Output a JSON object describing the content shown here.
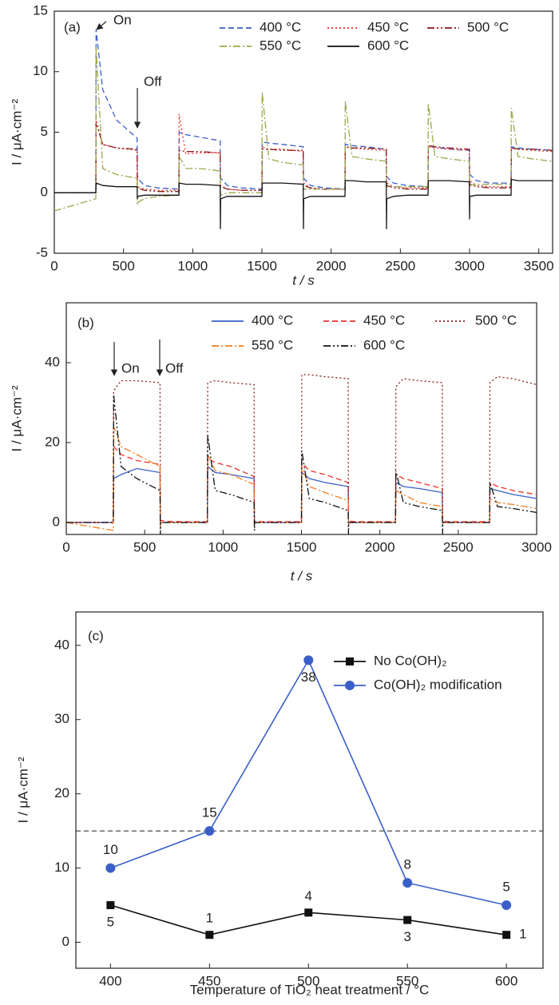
{
  "chart_data": [
    {
      "type": "line",
      "panel_label": "(a)",
      "annotations": [
        "On",
        "Off"
      ],
      "xlabel": "t / s",
      "ylabel": "I / μA·cm⁻²",
      "xlim": [
        0,
        3600
      ],
      "xticks": [
        0,
        500,
        1000,
        1500,
        2000,
        2500,
        3000,
        3500
      ],
      "ylim": [
        -5,
        15
      ],
      "yticks": [
        -5,
        0,
        5,
        10,
        15
      ],
      "x": [
        0,
        300,
        302,
        350,
        450,
        598,
        600,
        602,
        650,
        750,
        900,
        902,
        950,
        1050,
        1198,
        1200,
        1202,
        1250,
        1350,
        1500,
        1502,
        1550,
        1650,
        1798,
        1800,
        1802,
        1850,
        1950,
        2100,
        2102,
        2150,
        2250,
        2398,
        2400,
        2402,
        2450,
        2550,
        2700,
        2702,
        2750,
        2850,
        2998,
        3000,
        3002,
        3050,
        3150,
        3300,
        3302,
        3350,
        3450,
        3600
      ],
      "series": [
        {
          "name": "400 °C",
          "color": "#3a5fc8",
          "style": "dashed",
          "values": [
            0,
            0,
            13.5,
            8.5,
            6,
            4.5,
            1.5,
            1.2,
            0.6,
            0.4,
            0.3,
            5,
            4.8,
            4.6,
            4.3,
            1.5,
            1.2,
            0.6,
            0.4,
            0.3,
            4.2,
            4.1,
            4,
            3.8,
            1.5,
            1.2,
            0.6,
            0.4,
            0.3,
            4,
            3.9,
            3.8,
            3.6,
            1.6,
            1.3,
            0.8,
            0.6,
            0.5,
            3.8,
            3.8,
            3.6,
            3.5,
            1.8,
            1.5,
            1,
            0.8,
            0.8,
            3.8,
            3.7,
            3.6,
            3.5
          ]
        },
        {
          "name": "450 °C",
          "color": "#e8322b",
          "style": "dotted",
          "values": [
            0,
            0,
            6,
            4,
            3.7,
            3.5,
            0.5,
            0.5,
            0.3,
            0.2,
            0.2,
            6.5,
            3.2,
            3.3,
            3.3,
            0.8,
            0.6,
            0.3,
            0.2,
            0.2,
            3.8,
            3.6,
            3.6,
            3.4,
            1,
            0.8,
            0.4,
            0.3,
            0.3,
            3.8,
            3.7,
            3.6,
            3.5,
            1,
            0.8,
            0.5,
            0.4,
            0.4,
            3.8,
            3.7,
            3.6,
            3.5,
            1.2,
            1,
            0.6,
            0.5,
            0.5,
            3.7,
            3.6,
            3.5,
            3.4
          ]
        },
        {
          "name": "500 °C",
          "color": "#8b1a1a",
          "style": "dashdotdot",
          "values": [
            0,
            0,
            5.8,
            4,
            3.7,
            3.6,
            0.5,
            0.4,
            0.2,
            0.1,
            0.1,
            3.5,
            3.4,
            3.4,
            3.3,
            0.6,
            0.5,
            0.3,
            0.2,
            0.2,
            3.6,
            3.6,
            3.5,
            3.5,
            0.7,
            0.6,
            0.4,
            0.3,
            0.3,
            3.8,
            3.7,
            3.7,
            3.6,
            0.8,
            0.6,
            0.4,
            0.3,
            0.3,
            3.9,
            3.8,
            3.7,
            3.6,
            0.9,
            0.7,
            0.5,
            0.4,
            0.4,
            3.7,
            3.6,
            3.6,
            3.5
          ]
        },
        {
          "name": "550 °C",
          "color": "#9aa84a",
          "style": "dashdot",
          "values": [
            -1.5,
            -0.5,
            12,
            2,
            1.5,
            1.2,
            -1,
            -0.8,
            -0.5,
            -0.3,
            -0.2,
            3,
            2,
            2,
            1.8,
            -0.2,
            -0.2,
            0,
            0,
            0,
            8.3,
            2.8,
            2.5,
            2.3,
            0.2,
            0.3,
            0.3,
            0.3,
            0.3,
            7.6,
            3,
            2.8,
            2.6,
            0.5,
            0.5,
            0.5,
            0.5,
            0.5,
            7.4,
            3,
            2.8,
            2.6,
            0.5,
            0.6,
            0.7,
            0.7,
            0.7,
            7,
            3,
            2.8,
            2.6
          ]
        },
        {
          "name": "600 °C",
          "color": "#111111",
          "style": "solid",
          "values": [
            0,
            0,
            0.8,
            0.6,
            0.5,
            0.5,
            -0.5,
            -0.3,
            -0.2,
            -0.2,
            -0.2,
            0.8,
            0.7,
            0.7,
            0.6,
            -3,
            -0.5,
            -0.3,
            -0.3,
            -0.3,
            0.8,
            0.8,
            0.8,
            0.7,
            -3,
            -0.5,
            -0.3,
            -0.3,
            -0.3,
            1,
            1,
            0.9,
            0.9,
            -3,
            -0.5,
            -0.3,
            -0.2,
            -0.2,
            1,
            1,
            1,
            0.9,
            -2.2,
            -0.3,
            -0.2,
            -0.2,
            -0.2,
            1.1,
            1,
            1,
            1
          ]
        }
      ]
    },
    {
      "type": "line",
      "panel_label": "(b)",
      "annotations": [
        "On",
        "Off"
      ],
      "xlabel": "t / s",
      "ylabel": "I / μA·cm⁻²",
      "xlim": [
        0,
        3000
      ],
      "xticks": [
        0,
        500,
        1000,
        1500,
        2000,
        2500,
        3000
      ],
      "ylim": [
        -3,
        55
      ],
      "yticks": [
        0,
        20,
        40
      ],
      "x": [
        0,
        300,
        302,
        350,
        450,
        598,
        600,
        602,
        650,
        750,
        900,
        902,
        950,
        1050,
        1198,
        1200,
        1202,
        1250,
        1350,
        1500,
        1502,
        1550,
        1650,
        1798,
        1800,
        1802,
        1850,
        1950,
        2100,
        2102,
        2150,
        2250,
        2398,
        2400,
        2402,
        2450,
        2550,
        2700,
        2702,
        2750,
        2850,
        3000
      ],
      "series": [
        {
          "name": "400 °C",
          "color": "#3a5fc8",
          "style": "solid",
          "values": [
            0,
            0,
            11,
            12,
            13.5,
            12.5,
            0,
            0,
            0,
            0,
            0,
            14,
            12.5,
            12,
            11,
            0,
            0,
            0,
            0,
            0,
            12.5,
            11,
            10,
            9,
            0,
            0,
            0,
            0,
            0,
            10,
            9,
            8.5,
            7.5,
            0,
            0,
            0,
            0,
            0,
            8.5,
            8,
            7,
            6
          ]
        },
        {
          "name": "450 °C",
          "color": "#e8322b",
          "style": "dashed",
          "values": [
            0,
            0,
            19,
            17,
            15.5,
            14.5,
            0.5,
            0.5,
            0.3,
            0.2,
            0.2,
            16,
            15,
            14,
            11.5,
            0.5,
            0.3,
            0.2,
            0.2,
            0.2,
            15,
            13,
            12,
            10,
            0.5,
            0.3,
            0.2,
            0.2,
            0.2,
            12,
            11,
            10,
            8.5,
            0.5,
            0.3,
            0.2,
            0.2,
            0.2,
            10,
            9,
            8,
            7
          ]
        },
        {
          "name": "500 °C",
          "color": "#8b1a1a",
          "style": "dotted",
          "values": [
            0,
            0,
            33,
            35.5,
            35.5,
            35,
            0,
            0,
            0,
            0,
            0,
            35,
            35.5,
            35,
            34.5,
            0,
            0,
            0,
            0,
            0,
            37,
            37,
            36.5,
            36,
            0,
            0,
            0,
            0,
            0,
            34,
            36,
            35.5,
            35,
            0,
            0,
            0,
            0,
            0,
            35,
            36.5,
            36,
            34.5
          ]
        },
        {
          "name": "550 °C",
          "color": "#f07f23",
          "style": "dashdot",
          "values": [
            0,
            -2,
            24,
            19,
            17,
            14,
            -1,
            0,
            0,
            0,
            0,
            17,
            13,
            12,
            9.5,
            -1,
            0,
            0,
            0,
            0,
            14,
            9,
            7.5,
            5.5,
            -1,
            0,
            0,
            0,
            0,
            8,
            7,
            5,
            4,
            -1,
            0,
            0,
            0,
            0,
            6,
            5,
            4.5,
            3.5
          ]
        },
        {
          "name": "600 °C",
          "color": "#111111",
          "style": "dashdotdot",
          "values": [
            0,
            0,
            32,
            14,
            11,
            8,
            -3,
            0,
            0,
            0,
            0,
            22,
            8,
            7,
            5,
            -2,
            0,
            0,
            0,
            0,
            18,
            6,
            5,
            3,
            -3,
            0,
            0,
            0,
            0,
            13,
            5,
            4,
            3,
            -3,
            0,
            0,
            0,
            0,
            10,
            4,
            3.5,
            2.5
          ]
        }
      ]
    },
    {
      "type": "line",
      "panel_label": "(c)",
      "xlabel": "Temperature of TiO₂ heat treatment / °C",
      "ylabel": "I / μA·cm⁻²",
      "xlim": [
        382.5,
        618.5
      ],
      "xticks": [
        400,
        450,
        500,
        550,
        600
      ],
      "ylim": [
        -3.5,
        44.5
      ],
      "yticks": [
        0,
        10,
        20,
        30,
        40
      ],
      "reference_line": 15,
      "x": [
        400,
        450,
        500,
        550,
        600
      ],
      "series": [
        {
          "name": "No Co(OH)₂",
          "color": "#111111",
          "style": "solid",
          "marker": "square",
          "values": [
            5,
            1,
            4,
            3,
            1
          ]
        },
        {
          "name": "Co(OH)₂ modification",
          "color": "#3a5fc8",
          "style": "solid",
          "marker": "circle",
          "values": [
            10,
            15,
            38,
            8,
            5
          ]
        }
      ]
    }
  ]
}
